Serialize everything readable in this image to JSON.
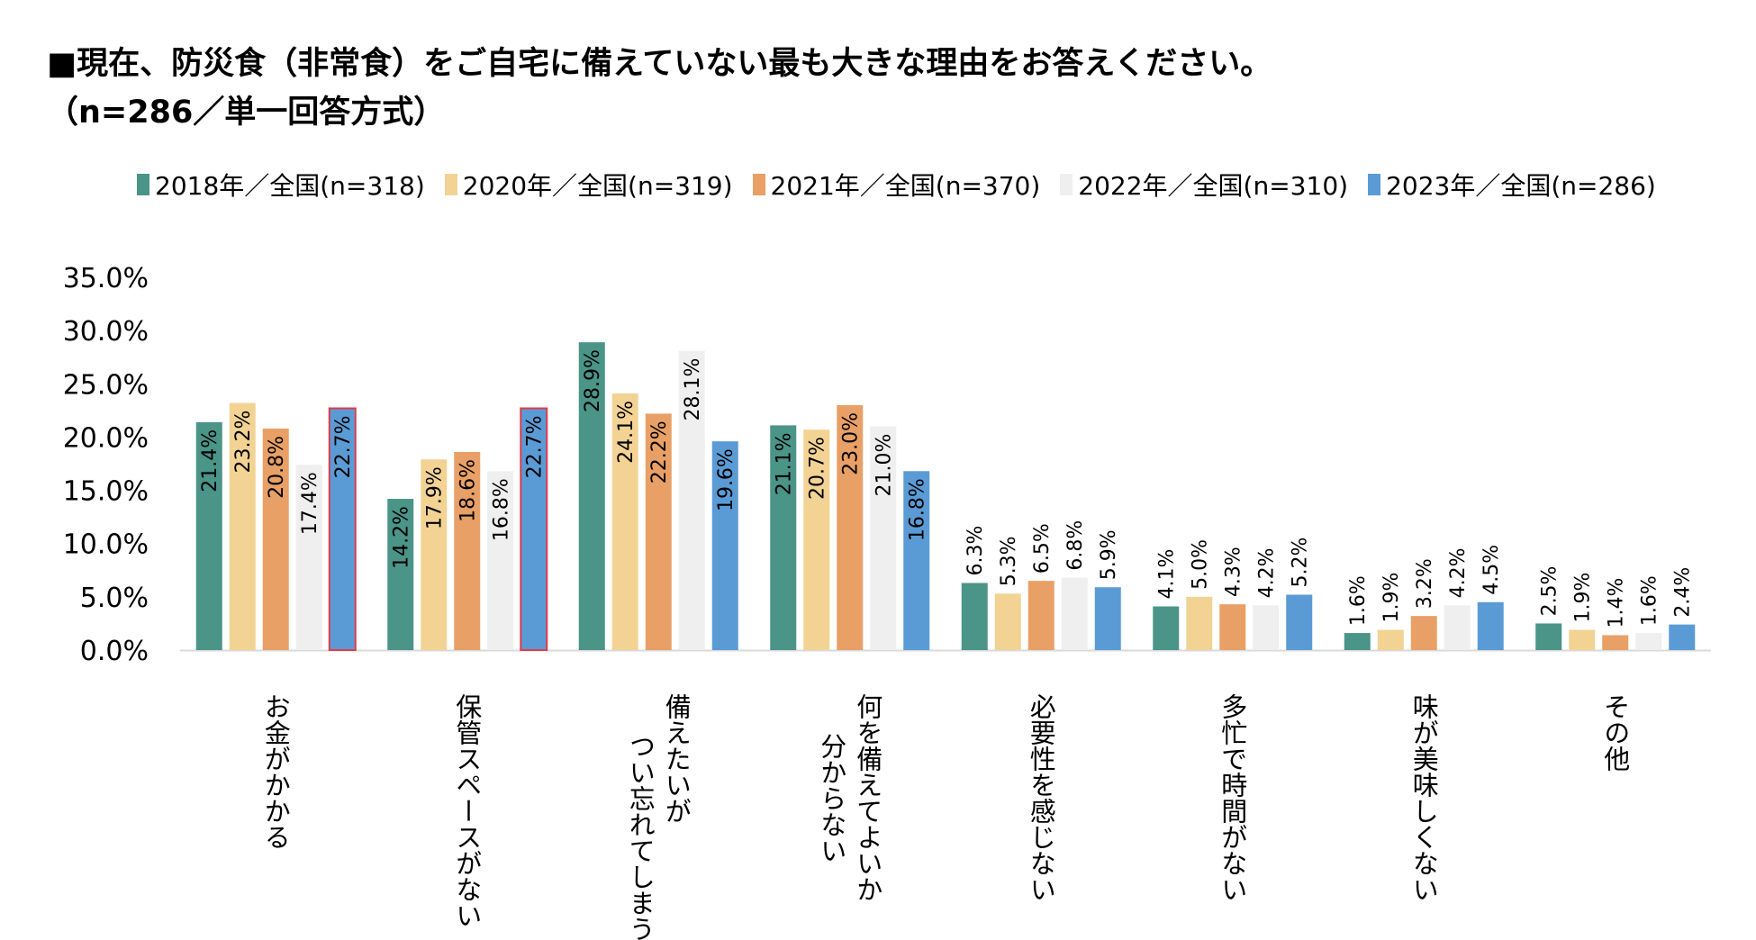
{
  "title": {
    "line1": "■現在、防災食（非常食）をご自宅に備えていない最も大きな理由をお答えください。",
    "line2": "（n=286／単一回答方式）"
  },
  "chart_data": {
    "type": "bar",
    "title": "■現在、防災食（非常食）をご自宅に備えていない最も大きな理由をお答えください。（n=286／単一回答方式）",
    "xlabel": "",
    "ylabel": "",
    "ylim": [
      0,
      35
    ],
    "yticks": [
      "0.0%",
      "5.0%",
      "10.0%",
      "15.0%",
      "20.0%",
      "25.0%",
      "30.0%",
      "35.0%"
    ],
    "grid": false,
    "legend_position": "top",
    "categories": [
      {
        "lines": [
          "お金がかかる"
        ]
      },
      {
        "lines": [
          "保管スペースがない"
        ]
      },
      {
        "lines": [
          "備えたいが",
          "つい忘れてしまう"
        ]
      },
      {
        "lines": [
          "何を備えてよいか",
          "分からない"
        ]
      },
      {
        "lines": [
          "必要性を感じない"
        ]
      },
      {
        "lines": [
          "多忙で時間がない"
        ]
      },
      {
        "lines": [
          "味が美味しくない"
        ]
      },
      {
        "lines": [
          "その他"
        ]
      }
    ],
    "series": [
      {
        "name": "2018年／全国(n=318)",
        "color": "#4a9488",
        "values": [
          21.4,
          14.2,
          28.9,
          21.1,
          6.3,
          4.1,
          1.6,
          2.5
        ]
      },
      {
        "name": "2020年／全国(n=319)",
        "color": "#f2d394",
        "values": [
          23.2,
          17.9,
          24.1,
          20.7,
          5.3,
          5.0,
          1.9,
          1.9
        ]
      },
      {
        "name": "2021年／全国(n=370)",
        "color": "#e9a066",
        "values": [
          20.8,
          18.6,
          22.2,
          23.0,
          6.5,
          4.3,
          3.2,
          1.4
        ]
      },
      {
        "name": "2022年／全国(n=310)",
        "color": "#efefef",
        "values": [
          17.4,
          16.8,
          28.1,
          21.0,
          6.8,
          4.2,
          4.2,
          1.6
        ]
      },
      {
        "name": "2023年／全国(n=286)",
        "color": "#5b9bd5",
        "values": [
          22.7,
          22.7,
          19.6,
          16.8,
          5.9,
          5.2,
          4.5,
          2.4
        ]
      }
    ],
    "highlighted": [
      {
        "series": 4,
        "category": 0
      },
      {
        "series": 4,
        "category": 1
      }
    ],
    "highlight_color": "#e03c4a",
    "value_suffix": "%"
  }
}
